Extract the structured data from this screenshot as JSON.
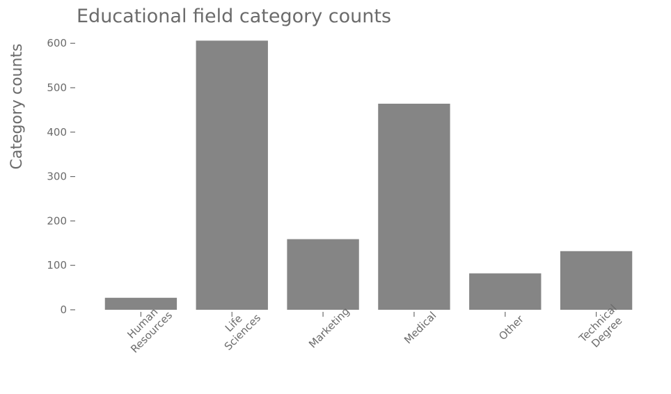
{
  "chart_data": {
    "type": "bar",
    "title": "Educational field category counts",
    "xlabel": "",
    "ylabel": "Category counts",
    "categories": [
      [
        "Human",
        "Resources"
      ],
      [
        "Life",
        "Sciences"
      ],
      [
        "Marketing"
      ],
      [
        "Medical"
      ],
      [
        "Other"
      ],
      [
        "Technical",
        "Degree"
      ]
    ],
    "values": [
      27,
      606,
      159,
      464,
      82,
      132
    ],
    "ylim": [
      0,
      620
    ],
    "yticks": [
      0,
      100,
      200,
      300,
      400,
      500,
      600
    ],
    "grid": false,
    "bar_color": "#858585",
    "text_color": "#6b6b6b"
  }
}
